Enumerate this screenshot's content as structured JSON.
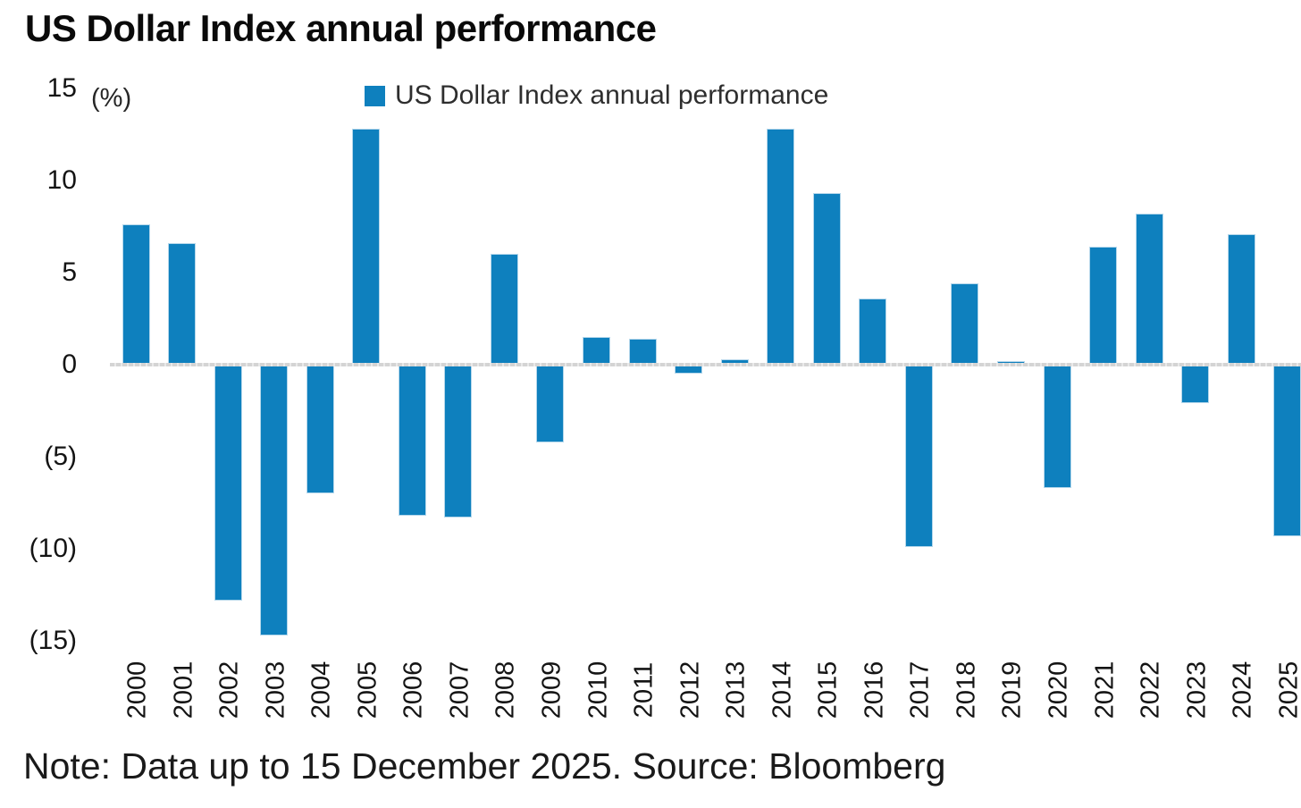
{
  "title": "US Dollar Index annual performance",
  "axis_unit_label": "(%)",
  "legend": {
    "label": "US Dollar Index annual performance",
    "marker_color": "#0E80BE"
  },
  "note": "Note: Data up to 15 December 2025. Source: Bloomberg",
  "colors": {
    "bar": "#0E80BE",
    "bar_edge": "#B5D7EB",
    "axis_line": "#D9D9D9",
    "text": "#1A1A1A"
  },
  "chart_data": {
    "type": "bar",
    "title": "US Dollar Index annual performance",
    "unit": "%",
    "categories": [
      "2000",
      "2001",
      "2002",
      "2003",
      "2004",
      "2005",
      "2006",
      "2007",
      "2008",
      "2009",
      "2010",
      "2011",
      "2012",
      "2013",
      "2014",
      "2015",
      "2016",
      "2017",
      "2018",
      "2019",
      "2020",
      "2021",
      "2022",
      "2023",
      "2024",
      "2025"
    ],
    "values": [
      7.6,
      6.6,
      -12.8,
      -14.7,
      -7.0,
      12.8,
      -8.2,
      -8.3,
      6.0,
      -4.2,
      1.5,
      1.4,
      -0.5,
      0.3,
      12.8,
      9.3,
      3.6,
      -9.9,
      4.4,
      0.2,
      -6.7,
      6.4,
      8.2,
      -2.1,
      7.1,
      -9.3
    ],
    "yticks": [
      {
        "value": 15,
        "label": "15"
      },
      {
        "value": 10,
        "label": "10"
      },
      {
        "value": 5,
        "label": "5"
      },
      {
        "value": 0,
        "label": "0"
      },
      {
        "value": -5,
        "label": "(5)"
      },
      {
        "value": -10,
        "label": "(10)"
      },
      {
        "value": -15,
        "label": "(15)"
      }
    ],
    "ylim": [
      -15,
      15
    ],
    "xlabel": "",
    "ylabel": "(%)",
    "grid": false,
    "legend_position": "top-center"
  }
}
